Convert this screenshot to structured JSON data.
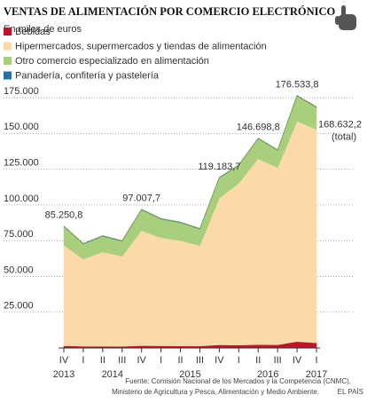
{
  "chart_data": {
    "type": "stacked_area",
    "title": "VENTAS DE ALIMENTACIÓN POR COMERCIO ELECTRÓNICO",
    "subtitle": "En miles de euros",
    "categories": [
      "IV",
      "I",
      "II",
      "III",
      "IV",
      "I",
      "II",
      "III",
      "IV",
      "I",
      "II",
      "III",
      "IV",
      "I"
    ],
    "year_labels": [
      "2013",
      "2014",
      "2015",
      "2016",
      "2017"
    ],
    "series": [
      {
        "name": "Bebidas",
        "color": "#c0142a",
        "values": [
          1500,
          1200,
          1200,
          1100,
          1600,
          1500,
          1400,
          1300,
          2200,
          2000,
          2300,
          2200,
          4500,
          3500
        ]
      },
      {
        "name": "Hipermercados, supermercados y tiendas de alimentación",
        "color": "#fcd9a8",
        "values": [
          70350,
          60900,
          65900,
          63000,
          80500,
          75600,
          73700,
          70300,
          102600,
          113100,
          130000,
          123900,
          154100,
          149200
        ]
      },
      {
        "name": "Otro comercio especializado en alimentación",
        "color": "#a9cf7d",
        "values": [
          13000,
          10500,
          11000,
          10500,
          14500,
          13000,
          12500,
          11500,
          14000,
          12500,
          14000,
          12000,
          17500,
          15500
        ]
      },
      {
        "name": "Panadería, confitería y pastelería",
        "color": "#2e6fa3",
        "values": [
          400,
          400,
          400,
          400,
          400,
          400,
          400,
          400,
          400,
          400,
          400,
          400,
          400,
          400
        ]
      }
    ],
    "value_labels": [
      "85.250,8",
      null,
      null,
      null,
      "97.007,7",
      null,
      null,
      null,
      "119.183,7",
      null,
      "146.698,8",
      null,
      "176.533,8",
      "168.632,2"
    ],
    "total_note": "(total)",
    "ylim": [
      0,
      180000
    ],
    "yticks": [
      0,
      {
        "value": 25000,
        "label": "25.000"
      },
      {
        "value": 50000,
        "label": "50.000"
      },
      {
        "value": 75000,
        "label": "75.000"
      },
      {
        "value": 100000,
        "label": "100.000"
      },
      {
        "value": 125000,
        "label": "125.000"
      },
      {
        "value": 150000,
        "label": "150.000"
      },
      {
        "value": 175000,
        "label": "175.000"
      }
    ],
    "grid": true,
    "source": [
      "Fuente: Comisión Nacional de los Mercados y la Competencia (CNMC),",
      "Ministerio de Agricultura y Pesca, Alimentación y Medio Ambiente."
    ],
    "credit": "EL PAÍS"
  }
}
